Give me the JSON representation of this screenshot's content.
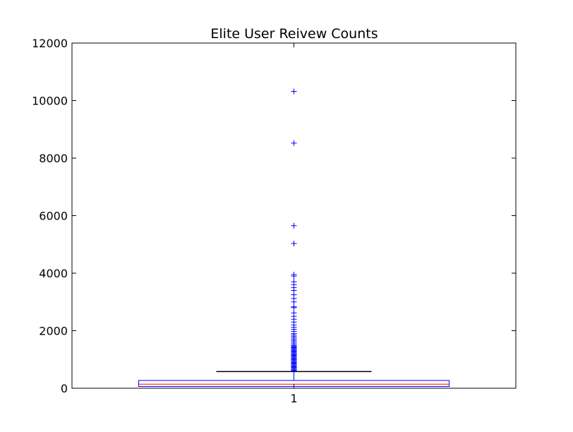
{
  "chart_data": {
    "type": "box",
    "title": "Elite User Reivew Counts",
    "xlabel": "",
    "ylabel": "",
    "ylim": [
      0,
      12000
    ],
    "yticks": [
      0,
      2000,
      4000,
      6000,
      8000,
      10000,
      12000
    ],
    "categories": [
      "1"
    ],
    "grid": false,
    "colors": {
      "box": "#0000ff",
      "median": "#ff0000",
      "whisker": "#0000ff",
      "cap": "#000000",
      "flier": "#0000ff"
    },
    "boxes": [
      {
        "category": "1",
        "q1": 60,
        "median": 140,
        "q3": 270,
        "whisker_low": 0,
        "whisker_high": 580,
        "fliers": [
          600,
          630,
          660,
          690,
          720,
          750,
          780,
          810,
          840,
          870,
          900,
          930,
          960,
          990,
          1020,
          1050,
          1080,
          1110,
          1140,
          1170,
          1200,
          1230,
          1260,
          1290,
          1320,
          1350,
          1380,
          1410,
          1440,
          1470,
          1500,
          1550,
          1600,
          1650,
          1700,
          1750,
          1800,
          1850,
          1900,
          1980,
          2050,
          2120,
          2200,
          2300,
          2400,
          2500,
          2620,
          2800,
          2830,
          3000,
          3120,
          3250,
          3400,
          3500,
          3600,
          3700,
          3900,
          3950,
          5030,
          5650,
          8520,
          10320
        ]
      }
    ]
  }
}
